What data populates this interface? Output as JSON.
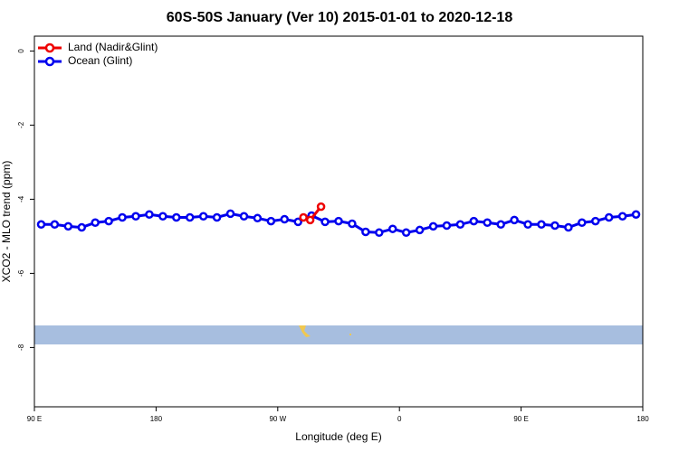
{
  "chart_data": {
    "type": "line",
    "title": "60S-50S January (Ver 10)   2015-01-01 to 2020-12-18",
    "x_label": "Longitude (deg E)",
    "y_label": "XCO2 - MLO trend (ppm)",
    "xlim": [
      90,
      540
    ],
    "xticks": [
      {
        "value": 90,
        "label": "90 E"
      },
      180,
      {
        "value": 270,
        "label": "90 W"
      },
      {
        "value": 360,
        "label": "0"
      },
      {
        "value": 450,
        "label": "90 E"
      },
      {
        "value": 540,
        "label": "180"
      }
    ],
    "ylim": [
      -9.6,
      0.4
    ],
    "yticks": [
      0,
      -2,
      -4,
      -6,
      -8
    ],
    "legend": "top-left",
    "series": [
      {
        "name": "Land (Nadir&Glint)",
        "color": "#ee0000",
        "x": [
          289,
          294,
          302
        ],
        "values": [
          -4.49,
          -4.56,
          -4.2
        ]
      },
      {
        "name": "Ocean (Glint)",
        "color": "#0000ee",
        "x": [
          95,
          105,
          115,
          125,
          135,
          145,
          155,
          165,
          175,
          185,
          195,
          205,
          215,
          225,
          235,
          245,
          255,
          265,
          275,
          285,
          295,
          305,
          315,
          325,
          335,
          345,
          355,
          365,
          375,
          385,
          395,
          405,
          415,
          425,
          435,
          445,
          455,
          465,
          475,
          485,
          495,
          505,
          515,
          525,
          535
        ],
        "values": [
          -4.68,
          -4.68,
          -4.73,
          -4.76,
          -4.63,
          -4.59,
          -4.49,
          -4.46,
          -4.41,
          -4.46,
          -4.49,
          -4.49,
          -4.46,
          -4.49,
          -4.39,
          -4.46,
          -4.51,
          -4.59,
          -4.54,
          -4.61,
          -4.44,
          -4.61,
          -4.59,
          -4.66,
          -4.88,
          -4.9,
          -4.8,
          -4.9,
          -4.83,
          -4.73,
          -4.71,
          -4.68,
          -4.59,
          -4.63,
          -4.68,
          -4.56,
          -4.68,
          -4.68,
          -4.71,
          -4.76,
          -4.63,
          -4.59,
          -4.49,
          -4.46,
          -4.41
        ]
      }
    ]
  }
}
